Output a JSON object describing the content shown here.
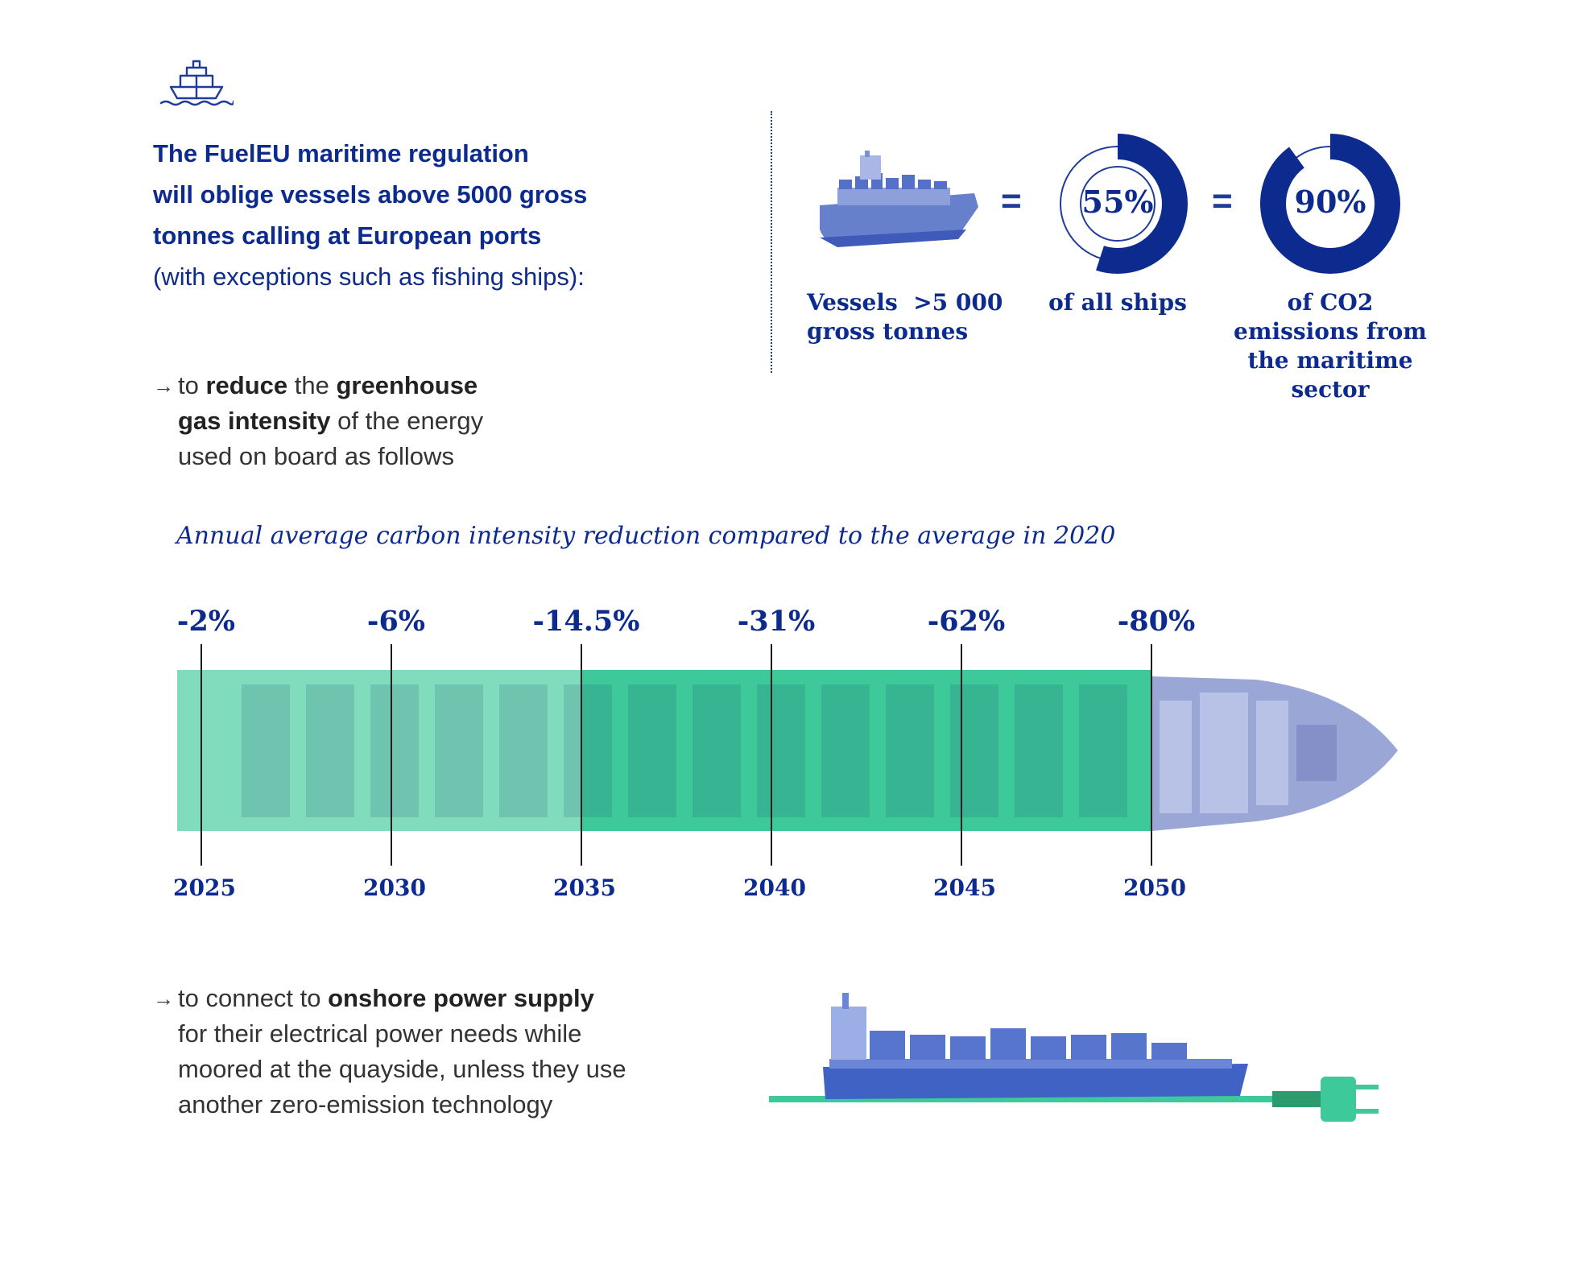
{
  "header": {
    "icon": "ship-icon"
  },
  "headline": {
    "bold_lines": [
      "The FuelEU maritime regulation",
      "will oblige vessels above 5000 gross",
      "tonnes calling at European ports"
    ],
    "regular_line": "(with exceptions such as fishing ships):"
  },
  "stats": {
    "vessels_label_1": "Vessels  >5 000",
    "vessels_label_2": "gross tonnes",
    "equals": "=",
    "ships_value": "55%",
    "ships_fraction": 0.55,
    "ships_label": "of all ships",
    "emissions_value": "90%",
    "emissions_fraction": 0.9,
    "emissions_label_lines": [
      "of CO2",
      "emissions from",
      "the maritime",
      "sector"
    ]
  },
  "bullet1": {
    "arrow": "→",
    "t1": "to ",
    "b1": "reduce",
    "t2": " the ",
    "b2": "greenhouse",
    "b3": "gas intensity",
    "t3": " of the energy",
    "t4": "used on board as follows"
  },
  "chart_data": {
    "type": "bar",
    "title": "Annual average carbon intensity reduction compared to the average in 2020",
    "x": [
      2025,
      2030,
      2035,
      2040,
      2045,
      2050
    ],
    "values": [
      -2,
      -6,
      -14.5,
      -31,
      -62,
      -80
    ],
    "labels": [
      "-2%",
      "-6%",
      "-14.5%",
      "-31%",
      "-62%",
      "-80%"
    ],
    "year_labels": [
      "2025",
      "2030",
      "2035",
      "2040",
      "2045",
      "2050"
    ],
    "colors": {
      "fill": "#3ec99a",
      "ship": "#9aa6d6",
      "line": "#1a1a1a"
    }
  },
  "bullet2": {
    "arrow": "→",
    "t1": "to connect to ",
    "b1": "onshore power supply",
    "l2": "for their electrical power needs while",
    "l3": "moored at the quayside, unless they use",
    "l4": "another zero-emission technology"
  },
  "colors": {
    "brand": "#0d2b8e",
    "accent_green": "#3ec99a",
    "ship_blue": "#3f62c4"
  }
}
